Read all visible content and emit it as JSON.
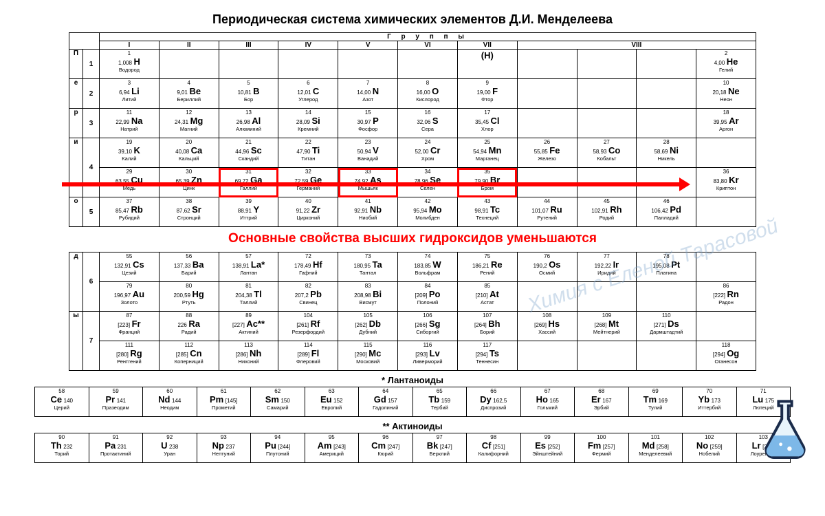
{
  "title": "Периодическая система химических элементов Д.И. Менделеева",
  "groups_label": "Г р у п п ы",
  "periods_label": "Периоды",
  "group_headers": [
    "I",
    "II",
    "III",
    "IV",
    "V",
    "VI",
    "VII",
    "VIII"
  ],
  "annotation": "Основные свойства высших гидроксидов уменьшаются",
  "lanth_title": "* Лантаноиды",
  "act_title": "** Актиноиды",
  "watermark": "Химия с Еленой Тарасовой",
  "colors": {
    "highlight": "#ff0000",
    "border": "#000000",
    "text": "#000000"
  },
  "rows": {
    "r1": [
      {
        "n": "1",
        "s": "H",
        "m": "1,008",
        "nm": "Водород"
      },
      null,
      null,
      null,
      null,
      null,
      {
        "s": "(H)",
        "n": "",
        "m": "",
        "nm": ""
      },
      null,
      null,
      null,
      {
        "n": "2",
        "s": "He",
        "m": "4,00",
        "nm": "Гелий"
      }
    ],
    "r2": [
      {
        "n": "3",
        "s": "Li",
        "m": "6,94",
        "nm": "Литий"
      },
      {
        "n": "4",
        "s": "Be",
        "m": "9,01",
        "nm": "Бериллий"
      },
      {
        "n": "5",
        "s": "B",
        "m": "10,81",
        "nm": "Бор"
      },
      {
        "n": "6",
        "s": "C",
        "m": "12,01",
        "nm": "Углерод"
      },
      {
        "n": "7",
        "s": "N",
        "m": "14,00",
        "nm": "Азот"
      },
      {
        "n": "8",
        "s": "O",
        "m": "16,00",
        "nm": "Кислород"
      },
      {
        "n": "9",
        "s": "F",
        "m": "19,00",
        "nm": "Фтор"
      },
      null,
      null,
      null,
      {
        "n": "10",
        "s": "Ne",
        "m": "20,18",
        "nm": "Неон"
      }
    ],
    "r3": [
      {
        "n": "11",
        "s": "Na",
        "m": "22,99",
        "nm": "Натрий"
      },
      {
        "n": "12",
        "s": "Mg",
        "m": "24,31",
        "nm": "Магний"
      },
      {
        "n": "13",
        "s": "Al",
        "m": "26,98",
        "nm": "Алюминий"
      },
      {
        "n": "14",
        "s": "Si",
        "m": "28,09",
        "nm": "Кремний"
      },
      {
        "n": "15",
        "s": "P",
        "m": "30,97",
        "nm": "Фосфор"
      },
      {
        "n": "16",
        "s": "S",
        "m": "32,06",
        "nm": "Сера"
      },
      {
        "n": "17",
        "s": "Cl",
        "m": "35,45",
        "nm": "Хлор"
      },
      null,
      null,
      null,
      {
        "n": "18",
        "s": "Ar",
        "m": "39,95",
        "nm": "Аргон"
      }
    ],
    "r4a": [
      {
        "n": "19",
        "s": "K",
        "m": "39,10",
        "nm": "Калий"
      },
      {
        "n": "20",
        "s": "Ca",
        "m": "40,08",
        "nm": "Кальций"
      },
      {
        "n": "21",
        "s": "Sc",
        "m": "44,96",
        "nm": "Скандий"
      },
      {
        "n": "22",
        "s": "Ti",
        "m": "47,90",
        "nm": "Титан"
      },
      {
        "n": "23",
        "s": "V",
        "m": "50,94",
        "nm": "Ванадий"
      },
      {
        "n": "24",
        "s": "Cr",
        "m": "52,00",
        "nm": "Хром"
      },
      {
        "n": "25",
        "s": "Mn",
        "m": "54,94",
        "nm": "Марганец"
      },
      {
        "n": "26",
        "s": "Fe",
        "m": "55,85",
        "nm": "Железо"
      },
      {
        "n": "27",
        "s": "Co",
        "m": "58,93",
        "nm": "Кобальт"
      },
      {
        "n": "28",
        "s": "Ni",
        "m": "58,69",
        "nm": "Никель"
      },
      null
    ],
    "r4b": [
      {
        "n": "29",
        "s": "Cu",
        "m": "63,55",
        "nm": "Медь"
      },
      {
        "n": "30",
        "s": "Zn",
        "m": "65,39",
        "nm": "Цинк"
      },
      {
        "n": "31",
        "s": "Ga",
        "m": "69,72",
        "nm": "Галлий",
        "hl": true
      },
      {
        "n": "32",
        "s": "Ge",
        "m": "72,59",
        "nm": "Германий"
      },
      {
        "n": "33",
        "s": "As",
        "m": "74,92",
        "nm": "Мышьяк",
        "hl": true
      },
      {
        "n": "34",
        "s": "Se",
        "m": "78,96",
        "nm": "Селен"
      },
      {
        "n": "35",
        "s": "Br",
        "m": "79,90",
        "nm": "Бром",
        "hl": true
      },
      null,
      null,
      null,
      {
        "n": "36",
        "s": "Kr",
        "m": "83,80",
        "nm": "Криптон"
      }
    ],
    "r5a": [
      {
        "n": "37",
        "s": "Rb",
        "m": "85,47",
        "nm": "Рубидий"
      },
      {
        "n": "38",
        "s": "Sr",
        "m": "87,62",
        "nm": "Стронций"
      },
      {
        "n": "39",
        "s": "Y",
        "m": "88,91",
        "nm": "Иттрий"
      },
      {
        "n": "40",
        "s": "Zr",
        "m": "91,22",
        "nm": "Цирконий"
      },
      {
        "n": "41",
        "s": "Nb",
        "m": "92,91",
        "nm": "Ниобий"
      },
      {
        "n": "42",
        "s": "Mo",
        "m": "95,94",
        "nm": "Молибден"
      },
      {
        "n": "43",
        "s": "Tc",
        "m": "98,91",
        "nm": "Технеций"
      },
      {
        "n": "44",
        "s": "Ru",
        "m": "101,07",
        "nm": "Рутений"
      },
      {
        "n": "45",
        "s": "Rh",
        "m": "102,91",
        "nm": "Родий"
      },
      {
        "n": "46",
        "s": "Pd",
        "m": "106,42",
        "nm": "Палладий"
      },
      null
    ],
    "r6a": [
      {
        "n": "55",
        "s": "Cs",
        "m": "132,91",
        "nm": "Цезий"
      },
      {
        "n": "56",
        "s": "Ba",
        "m": "137,33",
        "nm": "Барий"
      },
      {
        "n": "57",
        "s": "La*",
        "m": "138,91",
        "nm": "Лантан"
      },
      {
        "n": "72",
        "s": "Hf",
        "m": "178,49",
        "nm": "Гафний"
      },
      {
        "n": "73",
        "s": "Ta",
        "m": "180,95",
        "nm": "Тантал"
      },
      {
        "n": "74",
        "s": "W",
        "m": "183,85",
        "nm": "Вольфрам"
      },
      {
        "n": "75",
        "s": "Re",
        "m": "186,21",
        "nm": "Рений"
      },
      {
        "n": "76",
        "s": "Os",
        "m": "190,2",
        "nm": "Осмий"
      },
      {
        "n": "77",
        "s": "Ir",
        "m": "192,22",
        "nm": "Иридий"
      },
      {
        "n": "78",
        "s": "Pt",
        "m": "195,08",
        "nm": "Платина"
      },
      null
    ],
    "r6b": [
      {
        "n": "79",
        "s": "Au",
        "m": "196,97",
        "nm": "Золото"
      },
      {
        "n": "80",
        "s": "Hg",
        "m": "200,59",
        "nm": "Ртуть"
      },
      {
        "n": "81",
        "s": "Tl",
        "m": "204,38",
        "nm": "Таллий"
      },
      {
        "n": "82",
        "s": "Pb",
        "m": "207,2",
        "nm": "Свинец"
      },
      {
        "n": "83",
        "s": "Bi",
        "m": "208,98",
        "nm": "Висмут"
      },
      {
        "n": "84",
        "s": "Po",
        "m": "[209]",
        "nm": "Полоний"
      },
      {
        "n": "85",
        "s": "At",
        "m": "[210]",
        "nm": "Астат"
      },
      null,
      null,
      null,
      {
        "n": "86",
        "s": "Rn",
        "m": "[222]",
        "nm": "Радон"
      }
    ],
    "r7a": [
      {
        "n": "87",
        "s": "Fr",
        "m": "[223]",
        "nm": "Франций"
      },
      {
        "n": "88",
        "s": "Ra",
        "m": "226",
        "nm": "Радий"
      },
      {
        "n": "89",
        "s": "Ac**",
        "m": "[227]",
        "nm": "Актиний"
      },
      {
        "n": "104",
        "s": "Rf",
        "m": "[261]",
        "nm": "Резерфордий"
      },
      {
        "n": "105",
        "s": "Db",
        "m": "[262]",
        "nm": "Дубний"
      },
      {
        "n": "106",
        "s": "Sg",
        "m": "[266]",
        "nm": "Сиборгий"
      },
      {
        "n": "107",
        "s": "Bh",
        "m": "[264]",
        "nm": "Борий"
      },
      {
        "n": "108",
        "s": "Hs",
        "m": "[269]",
        "nm": "Хассий"
      },
      {
        "n": "109",
        "s": "Mt",
        "m": "[268]",
        "nm": "Мейтнерий"
      },
      {
        "n": "110",
        "s": "Ds",
        "m": "[271]",
        "nm": "Дармштадтий"
      },
      null
    ],
    "r7b": [
      {
        "n": "111",
        "s": "Rg",
        "m": "[280]",
        "nm": "Рентгений"
      },
      {
        "n": "112",
        "s": "Cn",
        "m": "[285]",
        "nm": "Коперниций"
      },
      {
        "n": "113",
        "s": "Nh",
        "m": "[286]",
        "nm": "Нихоний"
      },
      {
        "n": "114",
        "s": "Fl",
        "m": "[289]",
        "nm": "Флеровий"
      },
      {
        "n": "115",
        "s": "Mc",
        "m": "[290]",
        "nm": "Московий"
      },
      {
        "n": "116",
        "s": "Lv",
        "m": "[293]",
        "nm": "Ливерморий"
      },
      {
        "n": "117",
        "s": "Ts",
        "m": "[294]",
        "nm": "Теннесин"
      },
      null,
      null,
      null,
      {
        "n": "118",
        "s": "Og",
        "m": "[294]",
        "nm": "Оганесон"
      }
    ]
  },
  "lanth": [
    {
      "n": "58",
      "s": "Ce",
      "m": "140",
      "nm": "Церий"
    },
    {
      "n": "59",
      "s": "Pr",
      "m": "141",
      "nm": "Празеодим"
    },
    {
      "n": "60",
      "s": "Nd",
      "m": "144",
      "nm": "Неодим"
    },
    {
      "n": "61",
      "s": "Pm",
      "m": "[145]",
      "nm": "Прометий"
    },
    {
      "n": "62",
      "s": "Sm",
      "m": "150",
      "nm": "Самарий"
    },
    {
      "n": "63",
      "s": "Eu",
      "m": "152",
      "nm": "Европий"
    },
    {
      "n": "64",
      "s": "Gd",
      "m": "157",
      "nm": "Гадолиний"
    },
    {
      "n": "65",
      "s": "Tb",
      "m": "159",
      "nm": "Тербий"
    },
    {
      "n": "66",
      "s": "Dy",
      "m": "162,5",
      "nm": "Диспрозий"
    },
    {
      "n": "67",
      "s": "Ho",
      "m": "165",
      "nm": "Гольмий"
    },
    {
      "n": "68",
      "s": "Er",
      "m": "167",
      "nm": "Эрбий"
    },
    {
      "n": "69",
      "s": "Tm",
      "m": "169",
      "nm": "Тулий"
    },
    {
      "n": "70",
      "s": "Yb",
      "m": "173",
      "nm": "Иттербий"
    },
    {
      "n": "71",
      "s": "Lu",
      "m": "175",
      "nm": "Лютеций"
    }
  ],
  "act": [
    {
      "n": "90",
      "s": "Th",
      "m": "232",
      "nm": "Торий"
    },
    {
      "n": "91",
      "s": "Pa",
      "m": "231",
      "nm": "Протактиний"
    },
    {
      "n": "92",
      "s": "U",
      "m": "238",
      "nm": "Уран"
    },
    {
      "n": "93",
      "s": "Np",
      "m": "237",
      "nm": "Нептуний"
    },
    {
      "n": "94",
      "s": "Pu",
      "m": "[244]",
      "nm": "Плутоний"
    },
    {
      "n": "95",
      "s": "Am",
      "m": "[243]",
      "nm": "Америций"
    },
    {
      "n": "96",
      "s": "Cm",
      "m": "[247]",
      "nm": "Кюрий"
    },
    {
      "n": "97",
      "s": "Bk",
      "m": "[247]",
      "nm": "Берклий"
    },
    {
      "n": "98",
      "s": "Cf",
      "m": "[251]",
      "nm": "Калифорний"
    },
    {
      "n": "99",
      "s": "Es",
      "m": "[252]",
      "nm": "Эйнштейний"
    },
    {
      "n": "100",
      "s": "Fm",
      "m": "[257]",
      "nm": "Фермий"
    },
    {
      "n": "101",
      "s": "Md",
      "m": "[258]",
      "nm": "Менделеевий"
    },
    {
      "n": "102",
      "s": "No",
      "m": "[259]",
      "nm": "Нобелий"
    },
    {
      "n": "103",
      "s": "Lr",
      "m": "[262]",
      "nm": "Лоуренсий"
    }
  ]
}
